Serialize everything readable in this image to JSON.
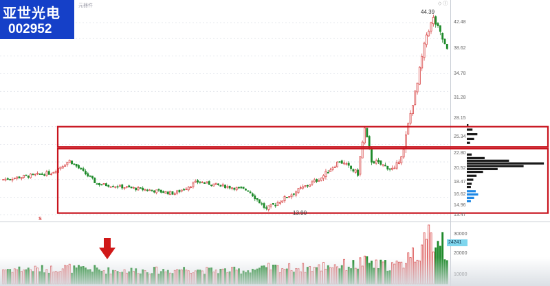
{
  "stock": {
    "name": "亚世光电",
    "code": "002952"
  },
  "header_tag": "元器件",
  "annotations": {
    "peak": "44.39",
    "low": "13.90",
    "marker": "S"
  },
  "price_axis": [
    "42.48",
    "38.62",
    "34.78",
    "31.28",
    "28.15",
    "25.34",
    "22.80",
    "20.52",
    "18.47",
    "16.62",
    "14.96",
    "13.47"
  ],
  "volume_axis": [
    "30000",
    "20000",
    "10000"
  ],
  "volume_readout": "24241",
  "colors": {
    "up": "#d94848",
    "down": "#1e8a2a",
    "box": "#c8141e",
    "badge": "#1540c8",
    "profile_dark": "#1a1a1a",
    "profile_blue": "#1e88e5"
  },
  "chart_data": {
    "type": "candlestick",
    "price_ticks": [
      42.48,
      38.62,
      34.78,
      31.28,
      28.15,
      25.34,
      22.8,
      20.52,
      18.47,
      16.62,
      14.96,
      13.47
    ],
    "volume_ticks": [
      30000,
      20000,
      10000
    ],
    "peak_price": 44.39,
    "low_price": 13.9,
    "segments": [
      {
        "from": 16.6,
        "to": 17.3,
        "n": 22,
        "amp": 0.35
      },
      {
        "from": 17.3,
        "to": 18.6,
        "n": 8,
        "amp": 0.4
      },
      {
        "from": 18.6,
        "to": 16.2,
        "n": 12,
        "amp": 0.35
      },
      {
        "from": 16.2,
        "to": 15.3,
        "n": 34,
        "amp": 0.3
      },
      {
        "from": 15.3,
        "to": 16.4,
        "n": 10,
        "amp": 0.35
      },
      {
        "from": 16.4,
        "to": 15.6,
        "n": 22,
        "amp": 0.3
      },
      {
        "from": 15.6,
        "to": 13.9,
        "n": 8,
        "amp": 0.35
      },
      {
        "from": 13.9,
        "to": 16.8,
        "n": 24,
        "amp": 0.4
      },
      {
        "from": 16.8,
        "to": 18.6,
        "n": 8,
        "amp": 0.5
      },
      {
        "from": 18.6,
        "to": 17.2,
        "n": 8,
        "amp": 0.5
      },
      {
        "from": 17.2,
        "to": 22.5,
        "n": 3,
        "amp": 0.6
      },
      {
        "from": 22.5,
        "to": 18.6,
        "n": 3,
        "amp": 0.6
      },
      {
        "from": 18.6,
        "to": 17.6,
        "n": 10,
        "amp": 0.5
      },
      {
        "from": 17.6,
        "to": 19.8,
        "n": 4,
        "amp": 0.5
      },
      {
        "from": 19.8,
        "to": 29.5,
        "n": 6,
        "amp": 0.9
      },
      {
        "from": 29.5,
        "to": 39.5,
        "n": 4,
        "amp": 1.2
      },
      {
        "from": 39.5,
        "to": 43.5,
        "n": 3,
        "amp": 1.5
      },
      {
        "from": 43.5,
        "to": 38.5,
        "n": 4,
        "amp": 1.6
      },
      {
        "from": 38.5,
        "to": 36.0,
        "n": 2,
        "amp": 1.0
      }
    ],
    "volume_profile": [
      {
        "price": 23.0,
        "w": 2,
        "c": "dark"
      },
      {
        "price": 22.4,
        "w": 7,
        "c": "dark"
      },
      {
        "price": 21.8,
        "w": 13,
        "c": "dark"
      },
      {
        "price": 21.2,
        "w": 9,
        "c": "dark"
      },
      {
        "price": 20.7,
        "w": 4,
        "c": "dark"
      },
      {
        "price": 19.3,
        "w": 6,
        "c": "dark"
      },
      {
        "price": 18.9,
        "w": 22,
        "c": "dark"
      },
      {
        "price": 18.6,
        "w": 52,
        "c": "dark"
      },
      {
        "price": 18.3,
        "w": 95,
        "c": "dark"
      },
      {
        "price": 18.0,
        "w": 70,
        "c": "dark"
      },
      {
        "price": 17.7,
        "w": 38,
        "c": "dark"
      },
      {
        "price": 17.4,
        "w": 20,
        "c": "dark"
      },
      {
        "price": 17.0,
        "w": 12,
        "c": "dark"
      },
      {
        "price": 16.6,
        "w": 8,
        "c": "dark"
      },
      {
        "price": 16.2,
        "w": 6,
        "c": "dark"
      },
      {
        "price": 15.9,
        "w": 5,
        "c": "dark"
      },
      {
        "price": 15.5,
        "w": 11,
        "c": "blue"
      },
      {
        "price": 15.2,
        "w": 14,
        "c": "blue"
      },
      {
        "price": 14.9,
        "w": 9,
        "c": "blue"
      },
      {
        "price": 14.6,
        "w": 5,
        "c": "blue"
      }
    ],
    "highlight_boxes": [
      {
        "top": 22.8,
        "bottom": 20.2
      },
      {
        "top": 20.0,
        "bottom": 13.6
      }
    ]
  }
}
